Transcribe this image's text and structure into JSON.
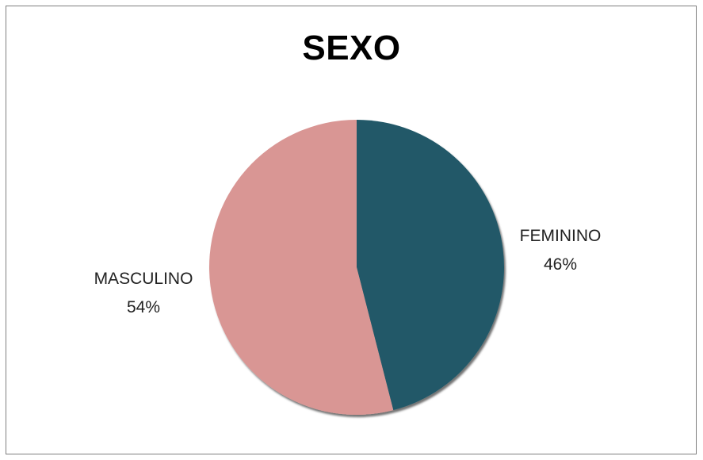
{
  "chart_data": {
    "type": "pie",
    "title": "SEXO",
    "slices": [
      {
        "label": "FEMININO",
        "value": 46,
        "percent_label": "46%",
        "color": "#215968"
      },
      {
        "label": "MASCULINO",
        "value": 54,
        "percent_label": "54%",
        "color": "#d99694"
      }
    ]
  }
}
